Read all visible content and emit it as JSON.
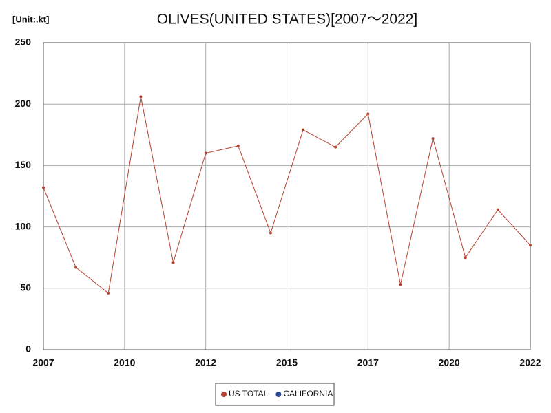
{
  "chart_data": {
    "type": "line",
    "title": "OLIVES(UNITED STATES)[2007～2022]",
    "unit_label": "[Unit:.kt]",
    "x": [
      2007,
      2008,
      2009,
      2010,
      2011,
      2012,
      2013,
      2014,
      2015,
      2016,
      2017,
      2018,
      2019,
      2020,
      2021,
      2022
    ],
    "series": [
      {
        "name": "US TOTAL",
        "color": "#b5412e",
        "values": [
          132,
          67,
          46,
          206,
          71,
          160,
          166,
          95,
          179,
          165,
          192,
          53,
          172,
          75,
          114,
          85
        ]
      },
      {
        "name": "CALIFORNIA",
        "color": "#2a4a9a",
        "values": [
          null,
          null,
          null,
          null,
          null,
          null,
          null,
          null,
          null,
          null,
          null,
          null,
          null,
          null,
          null,
          null
        ]
      }
    ],
    "xlim": [
      2007,
      2022
    ],
    "xticks": [
      2007,
      {
        "value": 2009.5,
        "label": "2010"
      },
      2012,
      {
        "value": 2014.5,
        "label": "2015"
      },
      2017,
      {
        "value": 2019.5,
        "label": "2020"
      },
      2022
    ],
    "ylim": [
      0,
      250
    ],
    "yticks": [
      0,
      50,
      100,
      150,
      200,
      250
    ],
    "grid": true,
    "legend": "bottom"
  }
}
